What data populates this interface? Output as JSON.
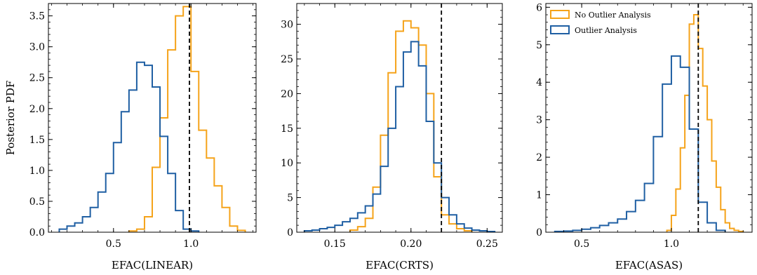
{
  "colors": {
    "no_outlier": "#F5A31A",
    "outlier": "#1F5FA3",
    "frame": "#000000",
    "truth_line": "#000000"
  },
  "legend": {
    "placement": "top-left of third panel",
    "entries": [
      {
        "label": "No Outlier Analysis",
        "color_key": "no_outlier"
      },
      {
        "label": "Outlier Analysis",
        "color_key": "outlier"
      }
    ]
  },
  "chart_data": [
    {
      "type": "histogram",
      "xlabel": "EFAC(LINEAR)",
      "ylabel": "Posterior PDF",
      "xlim": [
        0.08,
        1.42
      ],
      "ylim": [
        0,
        3.7
      ],
      "xticks": [
        0.5,
        1.0
      ],
      "xtick_labels": [
        "0.5",
        "1.0"
      ],
      "yticks": [
        0,
        0.5,
        1.0,
        1.5,
        2.0,
        2.5,
        3.0,
        3.5
      ],
      "ytick_labels": [
        "0.0",
        "0.5",
        "1.0",
        "1.5",
        "2.0",
        "2.5",
        "3.0",
        "3.5"
      ],
      "truth_value": 0.99,
      "series": [
        {
          "name": "No Outlier Analysis",
          "color_key": "no_outlier",
          "edges": [
            0.6,
            0.65,
            0.7,
            0.75,
            0.8,
            0.85,
            0.9,
            0.95,
            1.0,
            1.05,
            1.1,
            1.15,
            1.2,
            1.25,
            1.3,
            1.35
          ],
          "values": [
            0.02,
            0.05,
            0.25,
            1.05,
            1.85,
            2.95,
            3.5,
            3.65,
            2.6,
            1.65,
            1.2,
            0.75,
            0.4,
            0.1,
            0.03
          ]
        },
        {
          "name": "Outlier Analysis",
          "color_key": "outlier",
          "edges": [
            0.15,
            0.2,
            0.25,
            0.3,
            0.35,
            0.4,
            0.45,
            0.5,
            0.55,
            0.6,
            0.65,
            0.7,
            0.75,
            0.8,
            0.85,
            0.9,
            0.95,
            1.0,
            1.05
          ],
          "values": [
            0.05,
            0.1,
            0.15,
            0.25,
            0.4,
            0.65,
            0.95,
            1.45,
            1.95,
            2.3,
            2.75,
            2.7,
            2.35,
            1.55,
            0.95,
            0.35,
            0.05,
            0.02
          ]
        }
      ]
    },
    {
      "type": "histogram",
      "xlabel": "EFAC(CRTS)",
      "ylabel": "",
      "xlim": [
        0.125,
        0.26
      ],
      "ylim": [
        0,
        33
      ],
      "xticks": [
        0.15,
        0.2,
        0.25
      ],
      "xtick_labels": [
        "0.15",
        "0.20",
        "0.25"
      ],
      "yticks": [
        0,
        5,
        10,
        15,
        20,
        25,
        30
      ],
      "ytick_labels": [
        "0",
        "5",
        "10",
        "15",
        "20",
        "25",
        "30"
      ],
      "truth_value": 0.22,
      "series": [
        {
          "name": "No Outlier Analysis",
          "color_key": "no_outlier",
          "edges": [
            0.16,
            0.165,
            0.17,
            0.175,
            0.18,
            0.185,
            0.19,
            0.195,
            0.2,
            0.205,
            0.21,
            0.215,
            0.22,
            0.225,
            0.23,
            0.235,
            0.24
          ],
          "values": [
            0.3,
            0.8,
            2.0,
            6.5,
            14.0,
            23.0,
            29.0,
            30.5,
            29.5,
            27.0,
            20.0,
            8.0,
            2.5,
            1.2,
            0.5,
            0.2
          ]
        },
        {
          "name": "Outlier Analysis",
          "color_key": "outlier",
          "edges": [
            0.13,
            0.135,
            0.14,
            0.145,
            0.15,
            0.155,
            0.16,
            0.165,
            0.17,
            0.175,
            0.18,
            0.185,
            0.19,
            0.195,
            0.2,
            0.205,
            0.21,
            0.215,
            0.22,
            0.225,
            0.23,
            0.235,
            0.24,
            0.245,
            0.25,
            0.255
          ],
          "values": [
            0.2,
            0.3,
            0.5,
            0.7,
            1.0,
            1.5,
            2.0,
            2.8,
            3.8,
            5.5,
            9.5,
            15.0,
            21.0,
            26.0,
            27.5,
            24.0,
            16.0,
            10.0,
            5.0,
            2.5,
            1.2,
            0.6,
            0.3,
            0.2,
            0.1
          ]
        }
      ]
    },
    {
      "type": "histogram",
      "xlabel": "EFAC(ASAS)",
      "ylabel": "",
      "xlim": [
        0.3,
        1.45
      ],
      "ylim": [
        0,
        6.1
      ],
      "xticks": [
        0.5,
        1.0
      ],
      "xtick_labels": [
        "0.5",
        "1.0"
      ],
      "yticks": [
        0,
        1,
        2,
        3,
        4,
        5,
        6
      ],
      "ytick_labels": [
        "0",
        "1",
        "2",
        "3",
        "4",
        "5",
        "6"
      ],
      "truth_value": 1.15,
      "series": [
        {
          "name": "No Outlier Analysis",
          "color_key": "no_outlier",
          "edges": [
            0.975,
            1.0,
            1.025,
            1.05,
            1.075,
            1.1,
            1.125,
            1.15,
            1.175,
            1.2,
            1.225,
            1.25,
            1.275,
            1.3,
            1.325,
            1.35,
            1.375,
            1.4
          ],
          "values": [
            0.05,
            0.45,
            1.15,
            2.25,
            3.65,
            5.55,
            5.8,
            4.9,
            3.9,
            3.0,
            1.9,
            1.2,
            0.6,
            0.25,
            0.1,
            0.05,
            0.02
          ]
        },
        {
          "name": "Outlier Analysis",
          "color_key": "outlier",
          "edges": [
            0.35,
            0.4,
            0.45,
            0.5,
            0.55,
            0.6,
            0.65,
            0.7,
            0.75,
            0.8,
            0.85,
            0.9,
            0.95,
            1.0,
            1.05,
            1.1,
            1.15,
            1.2,
            1.25,
            1.3
          ],
          "values": [
            0.02,
            0.03,
            0.05,
            0.08,
            0.12,
            0.18,
            0.25,
            0.35,
            0.55,
            0.85,
            1.3,
            2.55,
            3.95,
            4.7,
            4.4,
            2.75,
            0.8,
            0.25,
            0.05
          ]
        }
      ]
    }
  ]
}
